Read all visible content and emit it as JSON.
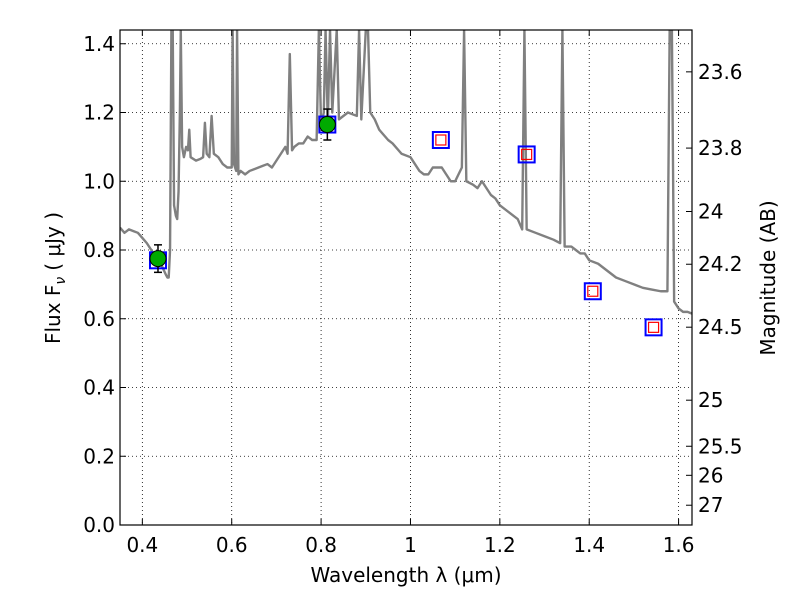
{
  "chart_data": {
    "type": "scatter",
    "xlabel": "Wavelength  λ (μm)",
    "ylabel": "Flux  F",
    "ylabel_sub": "ν",
    "ylabel_unit": "( μJy )",
    "y2label": "Magnitude (AB)",
    "xlim": [
      0.35,
      1.63
    ],
    "ylim": [
      0.0,
      1.44
    ],
    "grid": true,
    "x_ticks": [
      {
        "value": 0.4,
        "label": "0.4"
      },
      {
        "value": 0.6,
        "label": "0.6"
      },
      {
        "value": 0.8,
        "label": "0.8"
      },
      {
        "value": 1.0,
        "label": "1"
      },
      {
        "value": 1.2,
        "label": "1.2"
      },
      {
        "value": 1.4,
        "label": "1.4"
      },
      {
        "value": 1.6,
        "label": "1.6"
      }
    ],
    "y_ticks": [
      {
        "value": 0.0,
        "label": "0.0"
      },
      {
        "value": 0.2,
        "label": "0.2"
      },
      {
        "value": 0.4,
        "label": "0.4"
      },
      {
        "value": 0.6,
        "label": "0.6"
      },
      {
        "value": 0.8,
        "label": "0.8"
      },
      {
        "value": 1.0,
        "label": "1.0"
      },
      {
        "value": 1.2,
        "label": "1.2"
      },
      {
        "value": 1.4,
        "label": "1.4"
      }
    ],
    "y2_ticks": [
      {
        "value": 23.6,
        "label": "23.6"
      },
      {
        "value": 23.8,
        "label": "23.8"
      },
      {
        "value": 24.0,
        "label": "24"
      },
      {
        "value": 24.2,
        "label": "24.2"
      },
      {
        "value": 24.5,
        "label": "24.5"
      },
      {
        "value": 25.0,
        "label": "25"
      },
      {
        "value": 25.5,
        "label": "25.5"
      },
      {
        "value": 26.0,
        "label": "26"
      },
      {
        "value": 27.0,
        "label": "27"
      }
    ],
    "observed_points": [
      {
        "x": 0.435,
        "y": 0.775,
        "yerr": 0.04
      },
      {
        "x": 0.814,
        "y": 1.165,
        "yerr": 0.045
      }
    ],
    "model_points": [
      {
        "x": 0.435,
        "y": 0.77
      },
      {
        "x": 0.814,
        "y": 1.165
      },
      {
        "x": 1.068,
        "y": 1.12
      },
      {
        "x": 1.26,
        "y": 1.078
      },
      {
        "x": 1.408,
        "y": 0.68
      },
      {
        "x": 1.544,
        "y": 0.575
      }
    ],
    "upper_limit_points": [
      {
        "x": 1.068,
        "y": 1.12
      },
      {
        "x": 1.26,
        "y": 1.078
      },
      {
        "x": 1.408,
        "y": 0.68
      },
      {
        "x": 1.544,
        "y": 0.575
      }
    ],
    "sed_spectrum": [
      [
        0.35,
        0.865
      ],
      [
        0.36,
        0.85
      ],
      [
        0.37,
        0.86
      ],
      [
        0.38,
        0.855
      ],
      [
        0.39,
        0.85
      ],
      [
        0.4,
        0.835
      ],
      [
        0.41,
        0.82
      ],
      [
        0.42,
        0.8
      ],
      [
        0.43,
        0.78
      ],
      [
        0.44,
        0.77
      ],
      [
        0.445,
        0.75
      ],
      [
        0.452,
        0.73
      ],
      [
        0.456,
        0.72
      ],
      [
        0.459,
        0.72
      ],
      [
        0.462,
        0.8
      ],
      [
        0.465,
        1.44
      ],
      [
        0.468,
        1.44
      ],
      [
        0.471,
        0.93
      ],
      [
        0.475,
        0.9
      ],
      [
        0.478,
        0.89
      ],
      [
        0.481,
        0.97
      ],
      [
        0.484,
        1.2
      ],
      [
        0.486,
        1.44
      ],
      [
        0.489,
        1.1
      ],
      [
        0.493,
        1.07
      ],
      [
        0.498,
        1.1
      ],
      [
        0.502,
        1.09
      ],
      [
        0.505,
        1.15
      ],
      [
        0.508,
        1.07
      ],
      [
        0.52,
        1.06
      ],
      [
        0.53,
        1.065
      ],
      [
        0.536,
        1.07
      ],
      [
        0.54,
        1.17
      ],
      [
        0.544,
        1.08
      ],
      [
        0.55,
        1.07
      ],
      [
        0.555,
        1.19
      ],
      [
        0.56,
        1.08
      ],
      [
        0.57,
        1.07
      ],
      [
        0.58,
        1.05
      ],
      [
        0.59,
        1.04
      ],
      [
        0.6,
        1.04
      ],
      [
        0.602,
        1.44
      ],
      [
        0.605,
        1.05
      ],
      [
        0.61,
        1.03
      ],
      [
        0.612,
        1.44
      ],
      [
        0.615,
        1.02
      ],
      [
        0.62,
        1.03
      ],
      [
        0.63,
        1.02
      ],
      [
        0.64,
        1.03
      ],
      [
        0.65,
        1.035
      ],
      [
        0.66,
        1.04
      ],
      [
        0.67,
        1.045
      ],
      [
        0.68,
        1.05
      ],
      [
        0.69,
        1.04
      ],
      [
        0.7,
        1.06
      ],
      [
        0.71,
        1.08
      ],
      [
        0.72,
        1.1
      ],
      [
        0.725,
        1.08
      ],
      [
        0.73,
        1.37
      ],
      [
        0.735,
        1.09
      ],
      [
        0.74,
        1.1
      ],
      [
        0.75,
        1.11
      ],
      [
        0.76,
        1.11
      ],
      [
        0.77,
        1.13
      ],
      [
        0.78,
        1.12
      ],
      [
        0.79,
        1.12
      ],
      [
        0.795,
        1.44
      ],
      [
        0.8,
        1.16
      ],
      [
        0.806,
        1.2
      ],
      [
        0.81,
        1.44
      ],
      [
        0.815,
        1.17
      ],
      [
        0.82,
        1.44
      ],
      [
        0.825,
        1.2
      ],
      [
        0.835,
        1.44
      ],
      [
        0.84,
        1.18
      ],
      [
        0.86,
        1.2
      ],
      [
        0.88,
        1.19
      ],
      [
        0.885,
        1.44
      ],
      [
        0.89,
        1.18
      ],
      [
        0.9,
        1.44
      ],
      [
        0.905,
        1.44
      ],
      [
        0.91,
        1.2
      ],
      [
        0.92,
        1.18
      ],
      [
        0.93,
        1.15
      ],
      [
        0.95,
        1.12
      ],
      [
        0.96,
        1.11
      ],
      [
        0.98,
        1.08
      ],
      [
        1.0,
        1.07
      ],
      [
        1.01,
        1.05
      ],
      [
        1.02,
        1.03
      ],
      [
        1.03,
        1.02
      ],
      [
        1.04,
        1.02
      ],
      [
        1.05,
        1.04
      ],
      [
        1.07,
        1.04
      ],
      [
        1.08,
        1.02
      ],
      [
        1.09,
        1.0
      ],
      [
        1.1,
        1.0
      ],
      [
        1.115,
        1.04
      ],
      [
        1.12,
        1.44
      ],
      [
        1.125,
        1.0
      ],
      [
        1.14,
        0.99
      ],
      [
        1.15,
        0.98
      ],
      [
        1.16,
        1.0
      ],
      [
        1.17,
        0.98
      ],
      [
        1.18,
        0.96
      ],
      [
        1.19,
        0.95
      ],
      [
        1.2,
        0.93
      ],
      [
        1.22,
        0.91
      ],
      [
        1.24,
        0.89
      ],
      [
        1.25,
        0.86
      ],
      [
        1.255,
        1.44
      ],
      [
        1.26,
        0.86
      ],
      [
        1.28,
        0.85
      ],
      [
        1.3,
        0.84
      ],
      [
        1.32,
        0.83
      ],
      [
        1.335,
        0.82
      ],
      [
        1.34,
        1.44
      ],
      [
        1.345,
        0.81
      ],
      [
        1.36,
        0.81
      ],
      [
        1.37,
        0.8
      ],
      [
        1.38,
        0.79
      ],
      [
        1.39,
        0.79
      ],
      [
        1.4,
        0.77
      ],
      [
        1.42,
        0.76
      ],
      [
        1.44,
        0.74
      ],
      [
        1.46,
        0.72
      ],
      [
        1.48,
        0.71
      ],
      [
        1.5,
        0.7
      ],
      [
        1.52,
        0.69
      ],
      [
        1.54,
        0.685
      ],
      [
        1.56,
        0.68
      ],
      [
        1.575,
        0.68
      ],
      [
        1.58,
        1.44
      ],
      [
        1.585,
        1.44
      ],
      [
        1.59,
        0.65
      ],
      [
        1.6,
        0.63
      ],
      [
        1.61,
        0.62
      ],
      [
        1.62,
        0.62
      ],
      [
        1.63,
        0.615
      ]
    ],
    "colors": {
      "spectrum": "#808080",
      "observed_fill": "#00aa00",
      "model_marker": "#0000ff",
      "limit_marker": "#ff0000",
      "errorbar": "#000000",
      "grid": "#000000"
    }
  }
}
